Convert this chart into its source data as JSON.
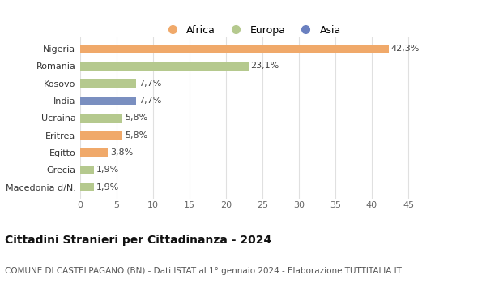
{
  "categories": [
    "Macedonia d/N.",
    "Grecia",
    "Egitto",
    "Eritrea",
    "Ucraina",
    "India",
    "Kosovo",
    "Romania",
    "Nigeria"
  ],
  "values": [
    1.9,
    1.9,
    3.8,
    5.8,
    5.8,
    7.7,
    7.7,
    23.1,
    42.3
  ],
  "labels": [
    "1,9%",
    "1,9%",
    "3,8%",
    "5,8%",
    "5,8%",
    "7,7%",
    "7,7%",
    "23,1%",
    "42,3%"
  ],
  "colors": [
    "#b5c98e",
    "#b5c98e",
    "#f0a96a",
    "#f0a96a",
    "#b5c98e",
    "#7a8fc0",
    "#b5c98e",
    "#b5c98e",
    "#f0a96a"
  ],
  "legend_items": [
    {
      "label": "Africa",
      "color": "#f0a96a"
    },
    {
      "label": "Europa",
      "color": "#b5c98e"
    },
    {
      "label": "Asia",
      "color": "#6a80c0"
    }
  ],
  "xlim": [
    0,
    47
  ],
  "xticks": [
    0,
    5,
    10,
    15,
    20,
    25,
    30,
    35,
    40,
    45
  ],
  "title": "Cittadini Stranieri per Cittadinanza - 2024",
  "subtitle": "COMUNE DI CASTELPAGANO (BN) - Dati ISTAT al 1° gennaio 2024 - Elaborazione TUTTITALIA.IT",
  "background_color": "#ffffff",
  "bar_height": 0.5,
  "title_fontsize": 10,
  "subtitle_fontsize": 7.5,
  "label_fontsize": 8,
  "tick_fontsize": 8,
  "legend_fontsize": 9
}
